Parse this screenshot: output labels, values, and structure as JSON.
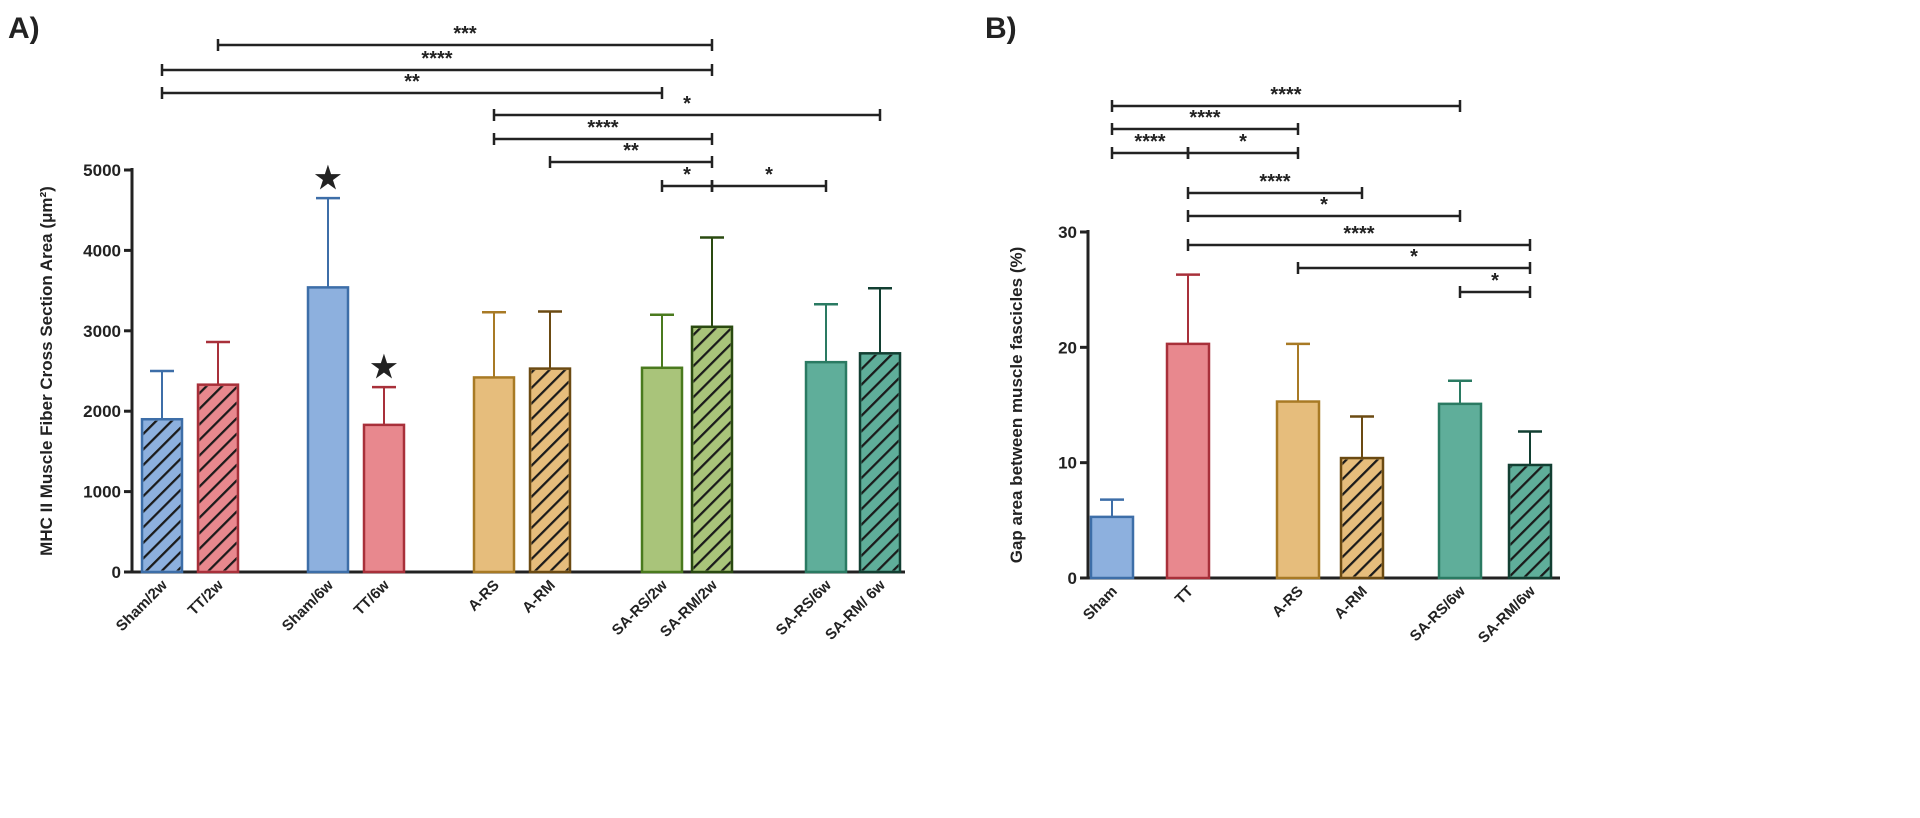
{
  "chart_data": [
    {
      "type": "bar",
      "panel": "A)",
      "ylabel": "MHC II Muscle Fiber Cross Section Area (μm²)",
      "ylim": [
        0,
        5000
      ],
      "yticks": [
        0,
        1000,
        2000,
        3000,
        4000,
        5000
      ],
      "categories": [
        "Sham/2w",
        "TT/2w",
        "Sham/6w",
        "TT/6w",
        "A-RS",
        "A-RM",
        "SA-RS/2w",
        "SA-RM/2w",
        "SA-RS/6w",
        "SA-RM/ 6w"
      ],
      "values": [
        1900,
        2330,
        3540,
        1830,
        2420,
        2530,
        2540,
        3050,
        2610,
        2720
      ],
      "error_upper": [
        2500,
        2860,
        4650,
        2300,
        3230,
        3240,
        3200,
        4160,
        3330,
        3530
      ],
      "hatched": [
        true,
        true,
        false,
        false,
        false,
        true,
        false,
        true,
        false,
        true
      ],
      "colors": [
        "#8db0de",
        "#e8888e",
        "#8db0de",
        "#e8888e",
        "#e6bd7c",
        "#e6bd7c",
        "#a9c47a",
        "#a9c47a",
        "#5fae9a",
        "#5fae9a"
      ],
      "strokes": [
        "#3d6ea8",
        "#a8303a",
        "#3d6ea8",
        "#a8303a",
        "#a87a25",
        "#6b4a12",
        "#4a7a1e",
        "#2a4a10",
        "#2a7a62",
        "#123f32"
      ],
      "star_markers": [
        "Sham/6w",
        "TT/6w"
      ],
      "star_symbol": "★",
      "significance": [
        {
          "from": "TT/2w",
          "to": "SA-RM/2w",
          "label": "***"
        },
        {
          "from": "Sham/2w",
          "to": "SA-RM/2w",
          "label": "****"
        },
        {
          "from": "Sham/2w",
          "to": "SA-RS/2w",
          "label": "**"
        },
        {
          "from": "A-RS",
          "to": "SA-RM/ 6w",
          "label": "*"
        },
        {
          "from": "A-RS",
          "to": "SA-RM/2w",
          "label": "****"
        },
        {
          "from": "A-RM",
          "to": "SA-RM/2w",
          "label": "**"
        },
        {
          "from": "SA-RS/2w",
          "to": "SA-RM/2w",
          "label": "*"
        },
        {
          "from": "SA-RM/2w",
          "to": "SA-RS/6w",
          "label": "*"
        }
      ]
    },
    {
      "type": "bar",
      "panel": "B)",
      "ylabel": "Gap area between muscle fascicles (%)",
      "ylim": [
        0,
        30
      ],
      "yticks": [
        0,
        10,
        20,
        30
      ],
      "categories": [
        "Sham",
        "TT",
        "A-RS",
        "A-RM",
        "SA-RS/6w",
        "SA-RM/6w"
      ],
      "values": [
        5.3,
        20.3,
        15.3,
        10.4,
        15.1,
        9.8
      ],
      "error_upper": [
        6.8,
        26.3,
        20.3,
        14.0,
        17.1,
        12.7
      ],
      "hatched": [
        false,
        false,
        false,
        true,
        false,
        true
      ],
      "colors": [
        "#8db0de",
        "#e8888e",
        "#e6bd7c",
        "#e6bd7c",
        "#5fae9a",
        "#5fae9a"
      ],
      "strokes": [
        "#3d6ea8",
        "#a8303a",
        "#a87a25",
        "#6b4a12",
        "#2a7a62",
        "#123f32"
      ],
      "significance": [
        {
          "from": "Sham",
          "to": "SA-RS/6w",
          "label": "****"
        },
        {
          "from": "Sham",
          "to": "A-RS",
          "label": "****"
        },
        {
          "from": "Sham",
          "to": "TT",
          "label": "****"
        },
        {
          "from": "TT",
          "to": "A-RS",
          "label": "*"
        },
        {
          "from": "TT",
          "to": "A-RM",
          "label": "****"
        },
        {
          "from": "TT",
          "to": "SA-RS/6w",
          "label": "*"
        },
        {
          "from": "TT",
          "to": "SA-RM/6w",
          "label": "****"
        },
        {
          "from": "A-RS",
          "to": "SA-RM/6w",
          "label": "*"
        },
        {
          "from": "SA-RS/6w",
          "to": "SA-RM/6w",
          "label": "*"
        }
      ]
    }
  ]
}
